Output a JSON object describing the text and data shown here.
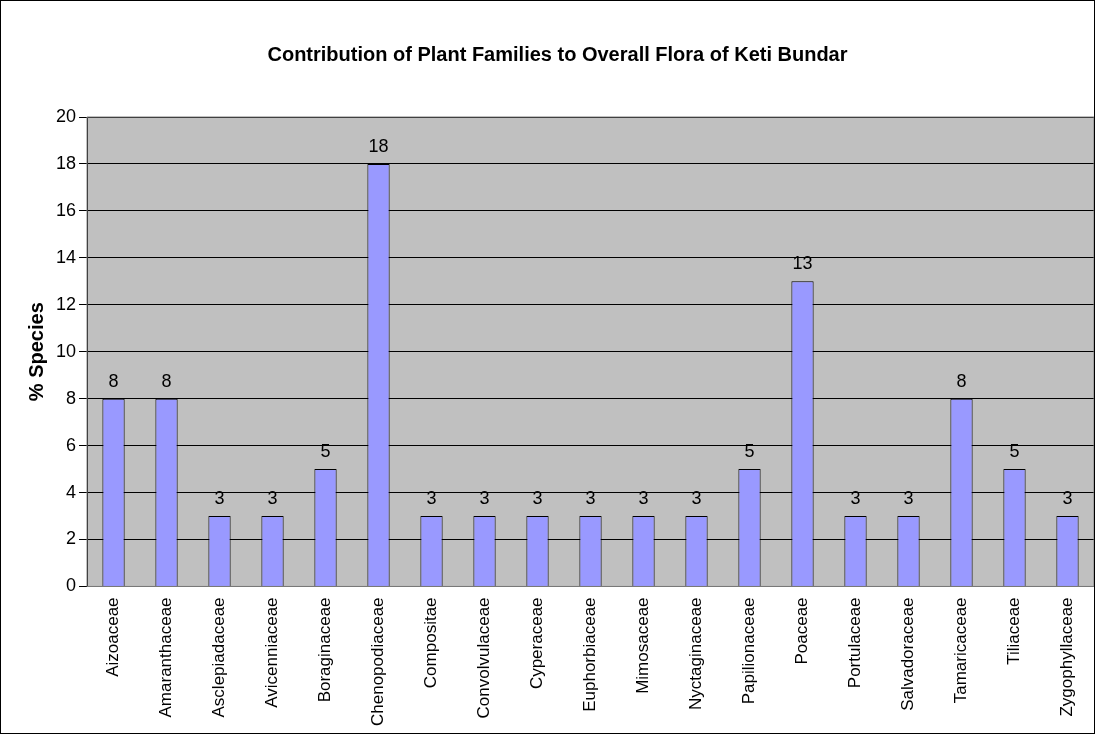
{
  "chart_data": {
    "type": "bar",
    "title": "Contribution of Plant Families to Overall Flora of Keti Bundar",
    "ylabel": "% Species",
    "categories": [
      "Aizoaceae",
      "Amaranthaceae",
      "Asclepiadaceae",
      "Avicenniaceae",
      "Boraginaceae",
      "Chenopodiaceae",
      "Compositae",
      "Convolvulaceae",
      "Cyperaceae",
      "Euphorbiaceae",
      "Mimosaceae",
      "Nyctaginaceae",
      "Papilionaceae",
      "Poaceae",
      "Portulaceae",
      "Salvadoraceae",
      "Tamaricaceae",
      "Tiliaceae",
      "Zygophyllaceae"
    ],
    "values": [
      8,
      8,
      3,
      3,
      5,
      18,
      3,
      3,
      3,
      3,
      3,
      3,
      5,
      13,
      3,
      3,
      8,
      5,
      3
    ],
    "color": "#9999ff",
    "ylim": [
      0,
      20
    ],
    "yticks": [
      0,
      2,
      4,
      6,
      8,
      10,
      12,
      14,
      16,
      18,
      20
    ],
    "grid": "y",
    "legend": false,
    "data_labels": true
  }
}
